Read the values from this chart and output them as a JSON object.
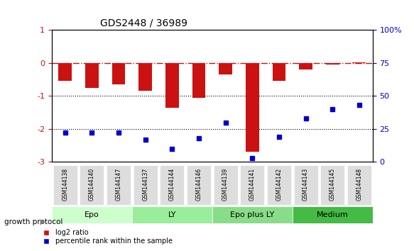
{
  "title": "GDS2448 / 36989",
  "samples": [
    "GSM144138",
    "GSM144140",
    "GSM144147",
    "GSM144137",
    "GSM144144",
    "GSM144146",
    "GSM144139",
    "GSM144141",
    "GSM144142",
    "GSM144143",
    "GSM144145",
    "GSM144148"
  ],
  "log2_ratio": [
    -0.55,
    -0.75,
    -0.65,
    -0.85,
    -1.35,
    -1.05,
    -0.35,
    -2.7,
    -0.55,
    -0.2,
    -0.05,
    0.02
  ],
  "percentile_rank": [
    22,
    22,
    22,
    17,
    10,
    18,
    30,
    3,
    19,
    33,
    40,
    43
  ],
  "groups": [
    {
      "label": "Epo",
      "color": "#ccffcc",
      "start": 0,
      "end": 3
    },
    {
      "label": "LY",
      "color": "#99ee99",
      "start": 3,
      "end": 6
    },
    {
      "label": "Epo plus LY",
      "color": "#88dd88",
      "start": 6,
      "end": 9
    },
    {
      "label": "Medium",
      "color": "#44bb44",
      "start": 9,
      "end": 12
    }
  ],
  "ylim_left": [
    -3,
    1
  ],
  "ylim_right": [
    0,
    100
  ],
  "yticks_left": [
    -3,
    -2,
    -1,
    0,
    1
  ],
  "yticks_right": [
    0,
    25,
    50,
    75,
    100
  ],
  "ytick_labels_right": [
    "0",
    "25",
    "50",
    "75",
    "100%"
  ],
  "bar_color": "#cc1111",
  "scatter_color": "#0000cc",
  "hline_y": 0,
  "dotted_lines": [
    -1,
    -2
  ],
  "bar_width": 0.5
}
